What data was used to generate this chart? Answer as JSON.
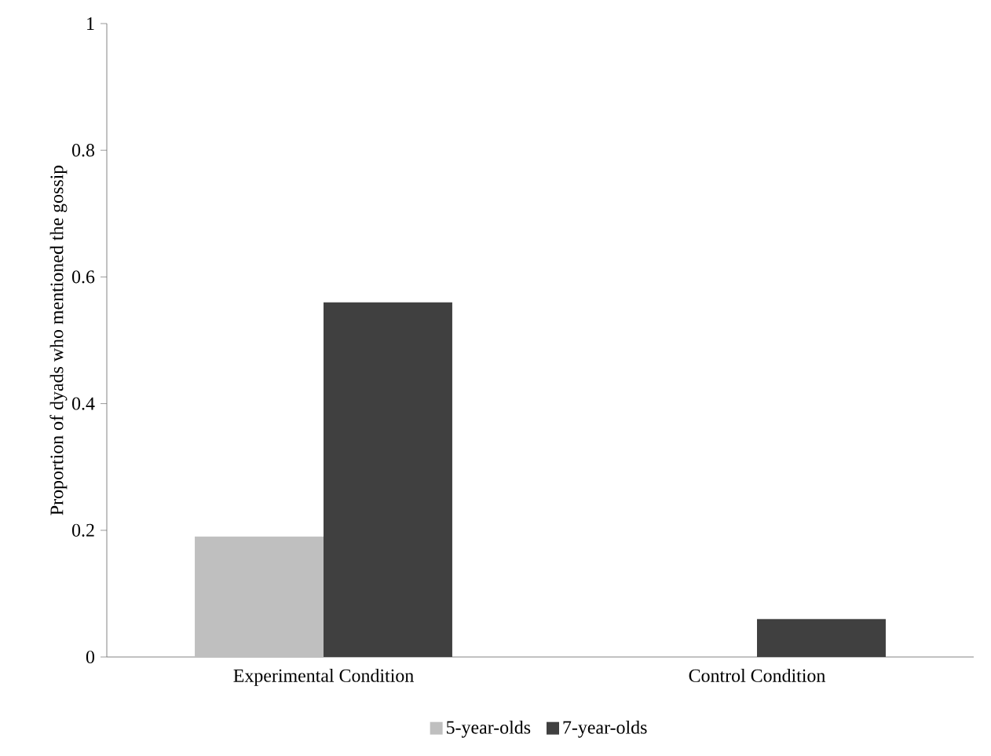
{
  "chart_data": {
    "type": "bar",
    "ylabel": "Proportion of dyads who mentioned the gossip",
    "categories": [
      "Experimental Condition",
      "Control Condition"
    ],
    "series": [
      {
        "name": "5-year-olds",
        "color": "#bfbfbf",
        "values": [
          0.19,
          0
        ]
      },
      {
        "name": "7-year-olds",
        "color": "#404040",
        "values": [
          0.56,
          0.06
        ]
      }
    ],
    "ylim": [
      0,
      1
    ],
    "yticks": [
      0,
      0.2,
      0.4,
      0.6,
      0.8,
      1
    ],
    "legend": "bottom",
    "grid": false
  }
}
